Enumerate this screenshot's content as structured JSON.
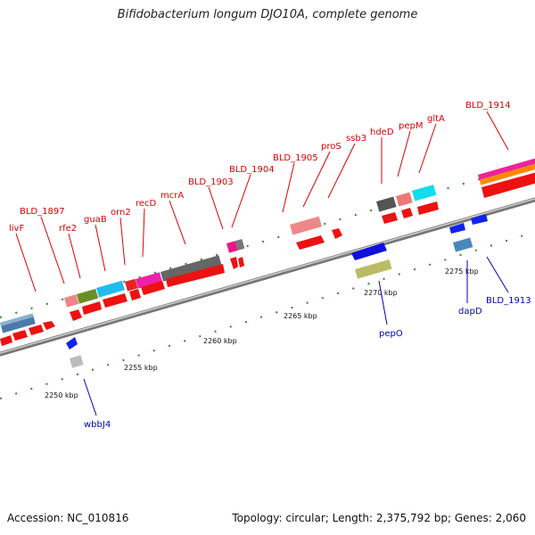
{
  "title": "Bifidobacterium longum DJO10A, complete genome",
  "footer": {
    "accession": "Accession: NC_010816",
    "summary": "Topology: circular; Length: 2,375,792 bp; Genes: 2,060"
  },
  "colors": {
    "forward_label": "#dd0000",
    "reverse_label": "#0000bb",
    "tick": "#228822",
    "arrow": "#ee1111"
  },
  "ticks": [
    "2250 kbp",
    "2255 kbp",
    "2260 kbp",
    "2265 kbp",
    "2270 kbp",
    "2275 kbp"
  ],
  "genes_top": [
    "livF",
    "BLD_1897",
    "rfe2",
    "guaB",
    "orn2",
    "recD",
    "mcrA",
    "BLD_1903",
    "BLD_1904",
    "BLD_1905",
    "proS",
    "ssb3",
    "hdeD",
    "pepM",
    "gltA",
    "BLD_1914"
  ],
  "genes_bottom": [
    "wbbJ4",
    "pepO",
    "dapD",
    "BLD_1913"
  ]
}
